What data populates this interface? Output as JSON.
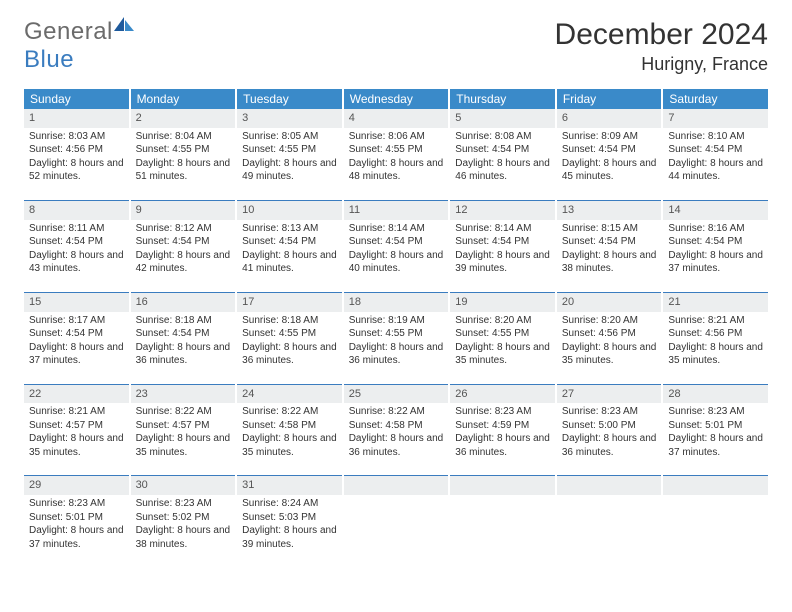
{
  "logo": {
    "text_general": "General",
    "text_blue": "Blue"
  },
  "title": "December 2024",
  "location": "Hurigny, France",
  "day_headers": [
    "Sunday",
    "Monday",
    "Tuesday",
    "Wednesday",
    "Thursday",
    "Friday",
    "Saturday"
  ],
  "colors": {
    "header_bg": "#3a8ac9",
    "rule": "#3a7cbf",
    "daynum_bg": "#eceeef",
    "logo_gray": "#6b6b6b",
    "logo_blue": "#3a7cbf"
  },
  "days": [
    {
      "n": "1",
      "sunrise": "8:03 AM",
      "sunset": "4:56 PM",
      "daylight": "8 hours and 52 minutes."
    },
    {
      "n": "2",
      "sunrise": "8:04 AM",
      "sunset": "4:55 PM",
      "daylight": "8 hours and 51 minutes."
    },
    {
      "n": "3",
      "sunrise": "8:05 AM",
      "sunset": "4:55 PM",
      "daylight": "8 hours and 49 minutes."
    },
    {
      "n": "4",
      "sunrise": "8:06 AM",
      "sunset": "4:55 PM",
      "daylight": "8 hours and 48 minutes."
    },
    {
      "n": "5",
      "sunrise": "8:08 AM",
      "sunset": "4:54 PM",
      "daylight": "8 hours and 46 minutes."
    },
    {
      "n": "6",
      "sunrise": "8:09 AM",
      "sunset": "4:54 PM",
      "daylight": "8 hours and 45 minutes."
    },
    {
      "n": "7",
      "sunrise": "8:10 AM",
      "sunset": "4:54 PM",
      "daylight": "8 hours and 44 minutes."
    },
    {
      "n": "8",
      "sunrise": "8:11 AM",
      "sunset": "4:54 PM",
      "daylight": "8 hours and 43 minutes."
    },
    {
      "n": "9",
      "sunrise": "8:12 AM",
      "sunset": "4:54 PM",
      "daylight": "8 hours and 42 minutes."
    },
    {
      "n": "10",
      "sunrise": "8:13 AM",
      "sunset": "4:54 PM",
      "daylight": "8 hours and 41 minutes."
    },
    {
      "n": "11",
      "sunrise": "8:14 AM",
      "sunset": "4:54 PM",
      "daylight": "8 hours and 40 minutes."
    },
    {
      "n": "12",
      "sunrise": "8:14 AM",
      "sunset": "4:54 PM",
      "daylight": "8 hours and 39 minutes."
    },
    {
      "n": "13",
      "sunrise": "8:15 AM",
      "sunset": "4:54 PM",
      "daylight": "8 hours and 38 minutes."
    },
    {
      "n": "14",
      "sunrise": "8:16 AM",
      "sunset": "4:54 PM",
      "daylight": "8 hours and 37 minutes."
    },
    {
      "n": "15",
      "sunrise": "8:17 AM",
      "sunset": "4:54 PM",
      "daylight": "8 hours and 37 minutes."
    },
    {
      "n": "16",
      "sunrise": "8:18 AM",
      "sunset": "4:54 PM",
      "daylight": "8 hours and 36 minutes."
    },
    {
      "n": "17",
      "sunrise": "8:18 AM",
      "sunset": "4:55 PM",
      "daylight": "8 hours and 36 minutes."
    },
    {
      "n": "18",
      "sunrise": "8:19 AM",
      "sunset": "4:55 PM",
      "daylight": "8 hours and 36 minutes."
    },
    {
      "n": "19",
      "sunrise": "8:20 AM",
      "sunset": "4:55 PM",
      "daylight": "8 hours and 35 minutes."
    },
    {
      "n": "20",
      "sunrise": "8:20 AM",
      "sunset": "4:56 PM",
      "daylight": "8 hours and 35 minutes."
    },
    {
      "n": "21",
      "sunrise": "8:21 AM",
      "sunset": "4:56 PM",
      "daylight": "8 hours and 35 minutes."
    },
    {
      "n": "22",
      "sunrise": "8:21 AM",
      "sunset": "4:57 PM",
      "daylight": "8 hours and 35 minutes."
    },
    {
      "n": "23",
      "sunrise": "8:22 AM",
      "sunset": "4:57 PM",
      "daylight": "8 hours and 35 minutes."
    },
    {
      "n": "24",
      "sunrise": "8:22 AM",
      "sunset": "4:58 PM",
      "daylight": "8 hours and 35 minutes."
    },
    {
      "n": "25",
      "sunrise": "8:22 AM",
      "sunset": "4:58 PM",
      "daylight": "8 hours and 36 minutes."
    },
    {
      "n": "26",
      "sunrise": "8:23 AM",
      "sunset": "4:59 PM",
      "daylight": "8 hours and 36 minutes."
    },
    {
      "n": "27",
      "sunrise": "8:23 AM",
      "sunset": "5:00 PM",
      "daylight": "8 hours and 36 minutes."
    },
    {
      "n": "28",
      "sunrise": "8:23 AM",
      "sunset": "5:01 PM",
      "daylight": "8 hours and 37 minutes."
    },
    {
      "n": "29",
      "sunrise": "8:23 AM",
      "sunset": "5:01 PM",
      "daylight": "8 hours and 37 minutes."
    },
    {
      "n": "30",
      "sunrise": "8:23 AM",
      "sunset": "5:02 PM",
      "daylight": "8 hours and 38 minutes."
    },
    {
      "n": "31",
      "sunrise": "8:24 AM",
      "sunset": "5:03 PM",
      "daylight": "8 hours and 39 minutes."
    }
  ],
  "labels": {
    "sunrise": "Sunrise: ",
    "sunset": "Sunset: ",
    "daylight": "Daylight: "
  }
}
